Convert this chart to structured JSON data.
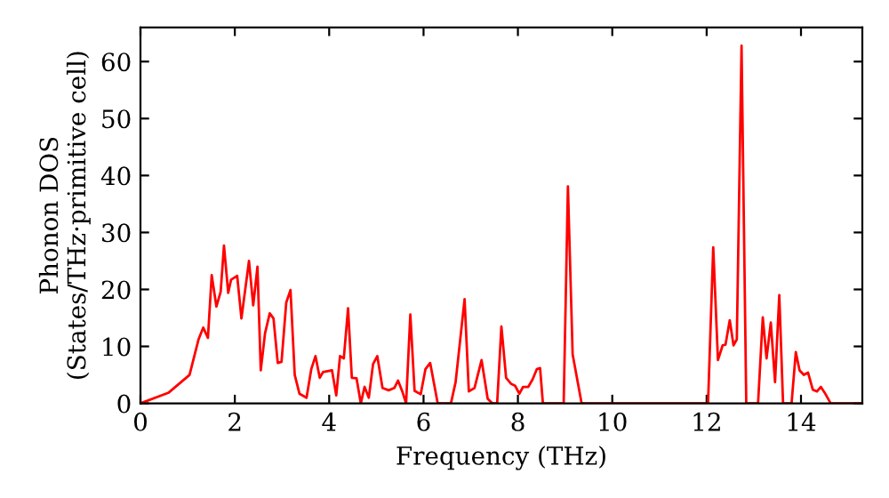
{
  "chart_data": {
    "type": "line",
    "xlabel": "Frequency (THz)",
    "ylabel": "Phonon DOS\n(States/THz·primitive cell)",
    "xlim": [
      0,
      15.3
    ],
    "ylim": [
      0,
      66
    ],
    "xticks": [
      0,
      2,
      4,
      6,
      8,
      10,
      12,
      14
    ],
    "yticks": [
      0,
      10,
      20,
      30,
      40,
      50,
      60
    ],
    "grid": false,
    "legend": false,
    "marker": "none",
    "line_style": "solid",
    "series": [
      {
        "color": "#ff0000",
        "x": [
          0,
          0.6,
          1.04,
          1.23,
          1.33,
          1.43,
          1.51,
          1.61,
          1.7,
          1.77,
          1.86,
          1.92,
          2.05,
          2.14,
          2.3,
          2.39,
          2.48,
          2.55,
          2.64,
          2.74,
          2.82,
          2.91,
          2.99,
          3.09,
          3.18,
          3.27,
          3.37,
          3.52,
          3.62,
          3.71,
          3.8,
          3.87,
          4.06,
          4.15,
          4.23,
          4.31,
          4.4,
          4.48,
          4.58,
          4.67,
          4.75,
          4.84,
          4.93,
          5.02,
          5.13,
          5.26,
          5.38,
          5.46,
          5.55,
          5.63,
          5.72,
          5.81,
          5.94,
          6.04,
          6.14,
          6.3,
          6.58,
          6.68,
          6.87,
          6.96,
          7.08,
          7.23,
          7.36,
          7.46,
          7.56,
          7.65,
          7.75,
          7.86,
          7.94,
          8.03,
          8.11,
          8.22,
          8.31,
          8.4,
          8.47,
          8.53,
          8.97,
          9.06,
          9.16,
          9.35,
          12.03,
          12.14,
          12.24,
          12.34,
          12.4,
          12.49,
          12.57,
          12.64,
          12.74,
          12.84,
          13.09,
          13.19,
          13.27,
          13.36,
          13.45,
          13.54,
          13.62,
          13.8,
          13.89,
          13.97,
          14.06,
          14.15,
          14.25,
          14.34,
          14.42,
          14.5,
          14.63,
          15.3
        ],
        "values": [
          0,
          1.9,
          5,
          11.2,
          13.3,
          11.5,
          22.5,
          17,
          19.6,
          27.7,
          19.4,
          21.7,
          22.4,
          14.9,
          25,
          17.2,
          24,
          5.8,
          12.3,
          15.8,
          14.9,
          7.1,
          7.3,
          17.7,
          19.9,
          5,
          1.7,
          1,
          6,
          8.3,
          4.5,
          5.5,
          5.8,
          1.4,
          8.3,
          7.9,
          16.7,
          4.5,
          4.4,
          0,
          2.9,
          1,
          6.9,
          8.3,
          2.7,
          2.3,
          2.7,
          4,
          2.1,
          0,
          15.6,
          2.2,
          1.6,
          6,
          7.1,
          0,
          0,
          3.75,
          18.3,
          2.1,
          2.7,
          7.6,
          0.8,
          0,
          0,
          13.5,
          4.5,
          3.4,
          3.1,
          1.7,
          2.9,
          2.9,
          4.2,
          6,
          6.2,
          0,
          0,
          38.1,
          8.6,
          0,
          0,
          27.4,
          7.6,
          10.2,
          10.3,
          14.6,
          10.2,
          11.25,
          62.8,
          0,
          0,
          15.1,
          7.9,
          14.2,
          3.75,
          19,
          0,
          0,
          9,
          5.8,
          5,
          5.4,
          2.4,
          2.1,
          2.9,
          1.9,
          0,
          0
        ]
      }
    ]
  }
}
